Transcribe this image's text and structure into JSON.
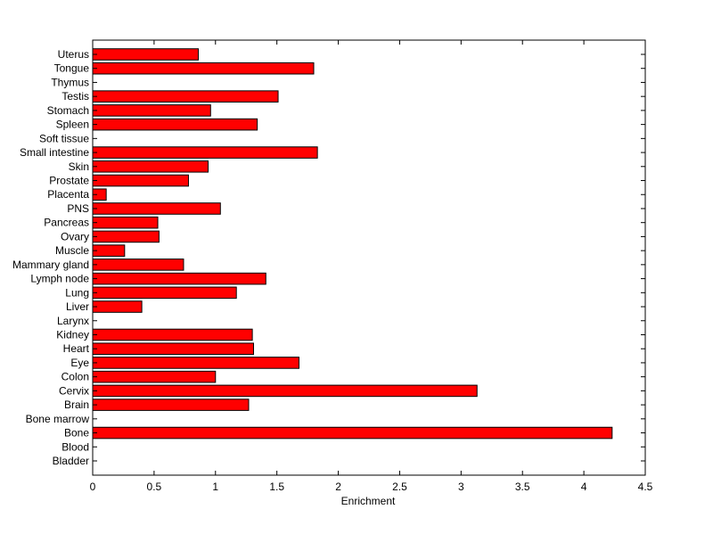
{
  "chart_data": {
    "type": "bar",
    "orientation": "horizontal",
    "title": "",
    "xlabel": "Enrichment",
    "ylabel": "",
    "xlim": [
      0,
      4.5
    ],
    "x_ticks": [
      "0",
      "0.5",
      "1",
      "1.5",
      "2",
      "2.5",
      "3",
      "3.5",
      "4",
      "4.5"
    ],
    "grid": false,
    "legend": "none",
    "bar_color": "#ff0000",
    "edge_color": "#000000",
    "categories": [
      "Bladder",
      "Blood",
      "Bone",
      "Bone marrow",
      "Brain",
      "Cervix",
      "Colon",
      "Eye",
      "Heart",
      "Kidney",
      "Larynx",
      "Liver",
      "Lung",
      "Lymph node",
      "Mammary gland",
      "Muscle",
      "Ovary",
      "Pancreas",
      "PNS",
      "Placenta",
      "Prostate",
      "Skin",
      "Small intestine",
      "Soft tissue",
      "Spleen",
      "Stomach",
      "Testis",
      "Thymus",
      "Tongue",
      "Uterus"
    ],
    "values": [
      0,
      0,
      4.23,
      0,
      1.27,
      3.13,
      1.0,
      1.68,
      1.31,
      1.3,
      0,
      0.4,
      1.17,
      1.41,
      0.74,
      0.26,
      0.54,
      0.53,
      1.04,
      0.11,
      0.78,
      0.94,
      1.83,
      0,
      1.34,
      0.96,
      1.51,
      0,
      1.8,
      0.86
    ]
  }
}
